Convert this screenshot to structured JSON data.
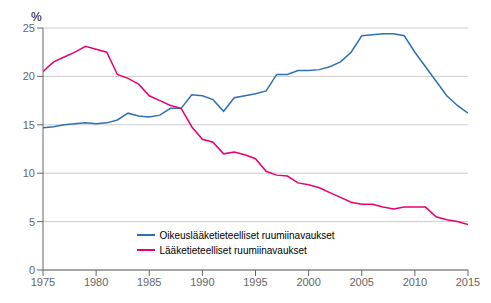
{
  "chart_data": {
    "type": "line",
    "ylabel": "%",
    "x": [
      1975,
      1976,
      1977,
      1978,
      1979,
      1980,
      1981,
      1982,
      1983,
      1984,
      1985,
      1986,
      1987,
      1988,
      1989,
      1990,
      1991,
      1992,
      1993,
      1994,
      1995,
      1996,
      1997,
      1998,
      1999,
      2000,
      2001,
      2002,
      2003,
      2004,
      2005,
      2006,
      2007,
      2008,
      2009,
      2010,
      2011,
      2012,
      2013,
      2014,
      2015
    ],
    "series": [
      {
        "name": "Oikeuslääketieteelliset ruumiinavaukset",
        "color": "#3070b4",
        "values": [
          14.7,
          14.8,
          15.0,
          15.1,
          15.2,
          15.1,
          15.2,
          15.5,
          16.2,
          15.9,
          15.8,
          16.0,
          16.7,
          16.7,
          18.1,
          18.0,
          17.6,
          16.4,
          17.8,
          18.0,
          18.2,
          18.5,
          20.2,
          20.2,
          20.6,
          20.6,
          20.7,
          21.0,
          21.5,
          22.5,
          24.2,
          24.3,
          24.4,
          24.4,
          24.2,
          22.5,
          21.0,
          19.5,
          18.0,
          17.0,
          16.2
        ]
      },
      {
        "name": "Lääketieteelliset ruumiinavaukset",
        "color": "#e8006f",
        "values": [
          20.5,
          21.5,
          22.0,
          22.5,
          23.1,
          22.8,
          22.5,
          20.2,
          19.8,
          19.2,
          18.0,
          17.5,
          17.0,
          16.7,
          14.8,
          13.5,
          13.2,
          12.0,
          12.2,
          11.9,
          11.5,
          10.2,
          9.8,
          9.7,
          9.0,
          8.8,
          8.5,
          8.0,
          7.5,
          7.0,
          6.8,
          6.8,
          6.5,
          6.3,
          6.5,
          6.5,
          6.5,
          5.5,
          5.2,
          5.0,
          4.7
        ]
      }
    ],
    "xlim": [
      1975,
      2015
    ],
    "ylim": [
      0,
      25
    ],
    "xticks": [
      1975,
      1980,
      1985,
      1990,
      1995,
      2000,
      2005,
      2010,
      2015
    ],
    "yticks": [
      0,
      5,
      10,
      15,
      20,
      25
    ],
    "grid": "y",
    "legend": "lower left"
  }
}
